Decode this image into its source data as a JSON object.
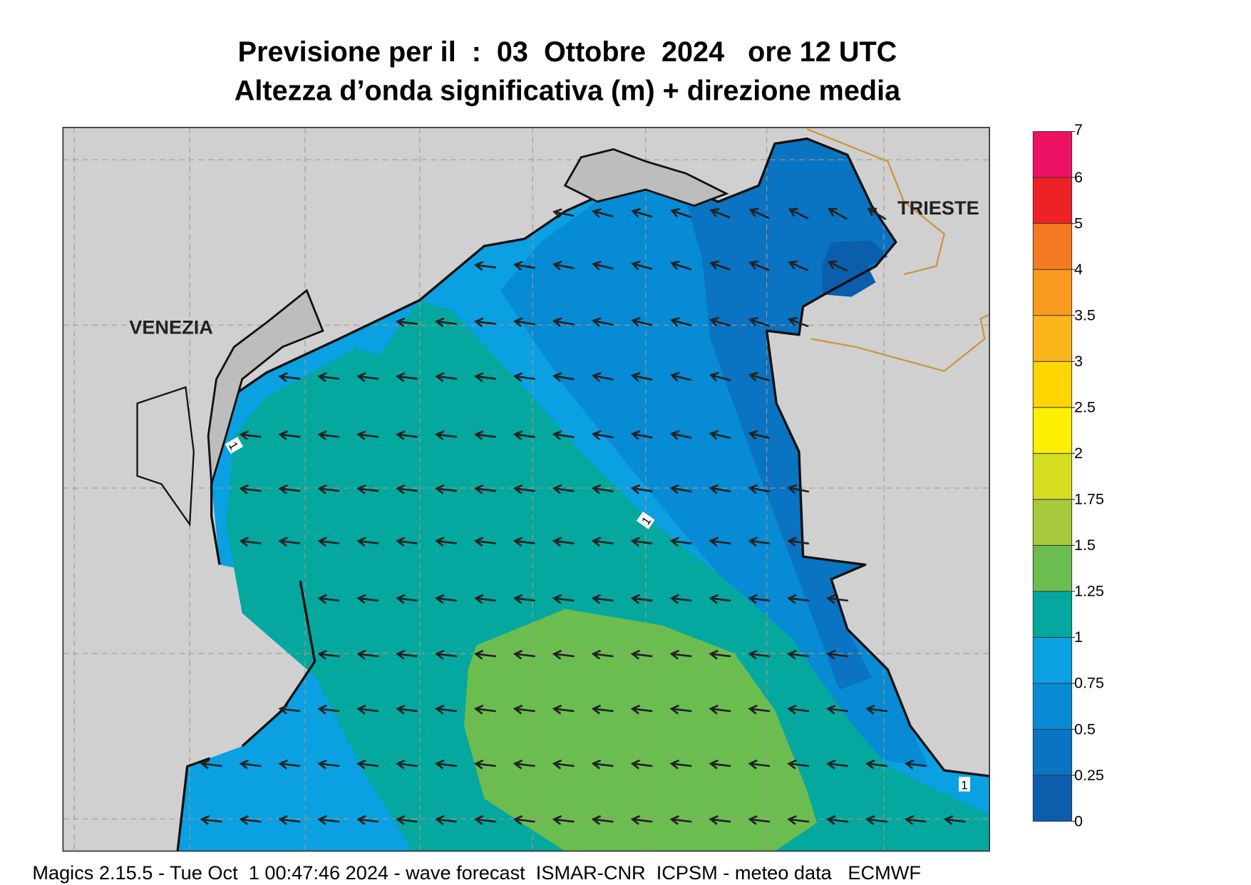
{
  "header": {
    "title": "Previsione per il  :  03  Ottobre  2024   ore 12 UTC",
    "subtitle": "Altezza d’onda significativa (m) + direzione media"
  },
  "map": {
    "labels": [
      "VENEZIA",
      "TRIESTE"
    ],
    "contour_labels": [
      "1",
      "1",
      "1"
    ]
  },
  "colorbar": {
    "levels": [
      0,
      0.25,
      0.5,
      0.75,
      1,
      1.25,
      1.5,
      1.75,
      2,
      2.5,
      3,
      3.5,
      4,
      5,
      6,
      7
    ],
    "colors": [
      "#0b5eac",
      "#0a73c2",
      "#078bd5",
      "#0aa0e2",
      "#04a89f",
      "#6bbd50",
      "#a7c93b",
      "#d5dd22",
      "#fbf000",
      "#fdd500",
      "#fbb61c",
      "#f89a1d",
      "#f47a21",
      "#ed2226",
      "#ec1163"
    ]
  },
  "footer": "Magics 2.15.5 - Tue Oct  1 00:47:46 2024 - wave forecast  ISMAR-CNR  ICPSM - meteo data   ECMWF"
}
